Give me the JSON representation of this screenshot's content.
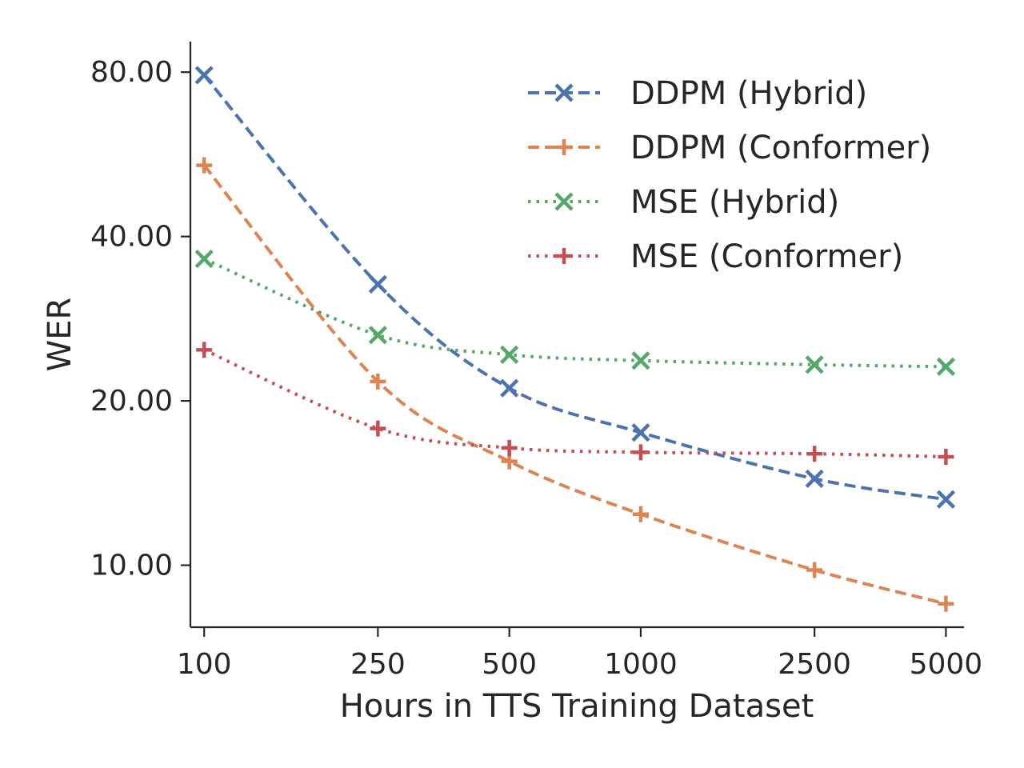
{
  "chart_data": {
    "type": "line",
    "xlabel": "Hours in TTS Training Dataset",
    "ylabel": "WER",
    "x_scale": "log",
    "y_scale": "log",
    "x": [
      100,
      250,
      500,
      1000,
      2500,
      5000
    ],
    "x_tick_labels": [
      "100",
      "250",
      "500",
      "1000",
      "2500",
      "5000"
    ],
    "y_ticks": [
      10,
      20,
      40,
      80
    ],
    "y_tick_labels": [
      "10.00",
      "20.00",
      "40.00",
      "80.00"
    ],
    "xlim": [
      93,
      5500
    ],
    "ylim": [
      7.7,
      91
    ],
    "grid": false,
    "legend_position": "top-right",
    "series": [
      {
        "name": "DDPM (Hybrid)",
        "values": [
          79,
          32.7,
          21.1,
          17.5,
          14.4,
          13.2
        ],
        "color": "#4c72b0",
        "dash": "dashed",
        "marker": "x"
      },
      {
        "name": "DDPM (Conformer)",
        "values": [
          54,
          21.7,
          15.5,
          12.4,
          9.8,
          8.5
        ],
        "color": "#dd8452",
        "dash": "dashed",
        "marker": "plus"
      },
      {
        "name": "MSE (Hybrid)",
        "values": [
          36.4,
          26.4,
          24.3,
          23.7,
          23.3,
          23.1
        ],
        "color": "#55a868",
        "dash": "dotted",
        "marker": "x"
      },
      {
        "name": "MSE (Conformer)",
        "values": [
          24.8,
          17.8,
          16.4,
          16.1,
          16.0,
          15.8
        ],
        "color": "#c44e52",
        "dash": "dotted",
        "marker": "plus"
      }
    ]
  }
}
